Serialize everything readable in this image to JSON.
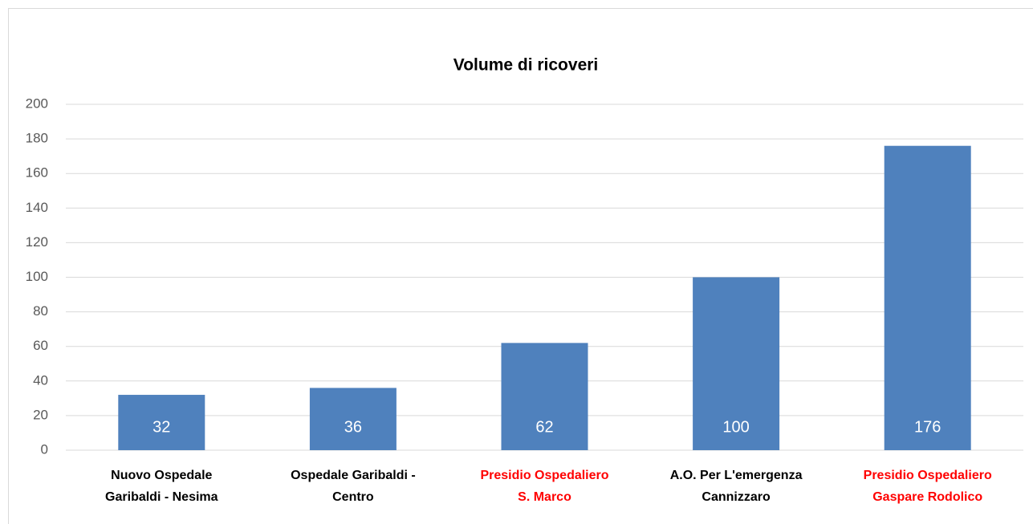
{
  "chart_data": {
    "type": "bar",
    "title": "Volume di ricoveri",
    "categories": [
      [
        "Nuovo Ospedale",
        "Garibaldi - Nesima"
      ],
      [
        "Ospedale Garibaldi -",
        "Centro"
      ],
      [
        "Presidio Ospedaliero",
        "S. Marco"
      ],
      [
        "A.O. Per L'emergenza",
        "Cannizzaro"
      ],
      [
        "Presidio Ospedaliero",
        "Gaspare Rodolico"
      ]
    ],
    "category_label_colors": [
      "#000000",
      "#000000",
      "#ff0000",
      "#000000",
      "#ff0000"
    ],
    "values": [
      32,
      36,
      62,
      100,
      176
    ],
    "color": "#4f81bd",
    "ylim": [
      0,
      200
    ],
    "yticks": [
      0,
      20,
      40,
      60,
      80,
      100,
      120,
      140,
      160,
      180,
      200
    ],
    "grid": true
  }
}
